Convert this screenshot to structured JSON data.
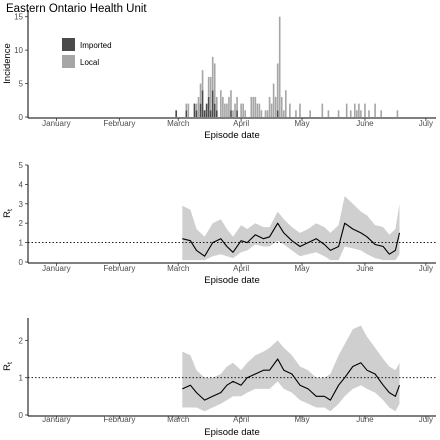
{
  "figure_title": "Eastern Ontario Health Unit",
  "colors": {
    "imported": "#4a4a4a",
    "local": "#a6a6a6",
    "ribbon": "#cfcfcf",
    "line": "#000000",
    "reference": "#000000"
  },
  "chart_data": [
    {
      "type": "bar",
      "stacked": true,
      "ylabel": "Incidence",
      "xlabel": "Episode date",
      "ylim": [
        0,
        16
      ],
      "yticks": [
        0,
        5,
        10,
        15
      ],
      "ytick_labels": [
        "0",
        "5",
        "10",
        "15"
      ],
      "xlim": [
        "2020-01-01",
        "2020-07-20"
      ],
      "xticks": [
        "2020-01-15",
        "2020-02-15",
        "2020-03-15",
        "2020-04-15",
        "2020-05-15",
        "2020-06-15",
        "2020-07-15"
      ],
      "xtick_labels": [
        "January",
        "February",
        "March",
        "April",
        "May",
        "June",
        "July"
      ],
      "legend": {
        "position": "top-left",
        "entries": [
          "Imported",
          "Local"
        ]
      },
      "series": [
        {
          "name": "Imported",
          "x": [
            "2020-03-14",
            "2020-03-19",
            "2020-03-23",
            "2020-03-24",
            "2020-03-26",
            "2020-03-27",
            "2020-03-28",
            "2020-03-29",
            "2020-03-30",
            "2020-03-31",
            "2020-04-01",
            "2020-04-02",
            "2020-04-03",
            "2020-04-10",
            "2020-04-13",
            "2020-05-03"
          ],
          "values": [
            1,
            1,
            2,
            1,
            2,
            4,
            1,
            2,
            3,
            1,
            4,
            2,
            1,
            1,
            1,
            1
          ]
        },
        {
          "name": "Local",
          "x": [
            "2020-03-14",
            "2020-03-19",
            "2020-03-20",
            "2020-03-24",
            "2020-03-25",
            "2020-03-26",
            "2020-03-27",
            "2020-03-30",
            "2020-03-31",
            "2020-04-01",
            "2020-04-02",
            "2020-04-03",
            "2020-04-05",
            "2020-04-06",
            "2020-04-07",
            "2020-04-08",
            "2020-04-09",
            "2020-04-10",
            "2020-04-11",
            "2020-04-12",
            "2020-04-13",
            "2020-04-15",
            "2020-04-16",
            "2020-04-17",
            "2020-04-20",
            "2020-04-21",
            "2020-04-22",
            "2020-04-23",
            "2020-04-24",
            "2020-04-25",
            "2020-04-27",
            "2020-04-28",
            "2020-04-29",
            "2020-04-30",
            "2020-05-01",
            "2020-05-02",
            "2020-05-03",
            "2020-05-04",
            "2020-05-05",
            "2020-05-06",
            "2020-05-07",
            "2020-05-09",
            "2020-05-12",
            "2020-05-14",
            "2020-05-19",
            "2020-05-25",
            "2020-05-28",
            "2020-06-02",
            "2020-06-06",
            "2020-06-08",
            "2020-06-10",
            "2020-06-11",
            "2020-06-12",
            "2020-06-13",
            "2020-06-15",
            "2020-06-17",
            "2020-06-20",
            "2020-06-23",
            "2020-07-01"
          ],
          "values": [
            0,
            1,
            2,
            1,
            3,
            3,
            3,
            3,
            5,
            5,
            6,
            2,
            4,
            3,
            2,
            2,
            3,
            3,
            1,
            2,
            2,
            2,
            2,
            1,
            3,
            3,
            3,
            2,
            2,
            1,
            1,
            1,
            3,
            2,
            5,
            3,
            7,
            15,
            3,
            1,
            4,
            2,
            1,
            2,
            1,
            2,
            1,
            1,
            2,
            1,
            2,
            1,
            2,
            1,
            2,
            1,
            2,
            1,
            1
          ]
        }
      ]
    },
    {
      "type": "line",
      "ylabel": "Rt",
      "xlabel": "Episode date",
      "ylim": [
        0,
        5
      ],
      "yticks": [
        0,
        1,
        2,
        3,
        4,
        5
      ],
      "ytick_labels": [
        "0",
        "1",
        "2",
        "3",
        "4",
        "5"
      ],
      "xlim": [
        "2020-01-01",
        "2020-07-20"
      ],
      "xticks": [
        "2020-01-15",
        "2020-02-15",
        "2020-03-15",
        "2020-04-15",
        "2020-05-15",
        "2020-06-15",
        "2020-07-15"
      ],
      "xtick_labels": [
        "January",
        "February",
        "March",
        "April",
        "May",
        "June",
        "July"
      ],
      "reference_line": {
        "y": 1,
        "style": "dotted"
      },
      "series": [
        {
          "x": [
            "2020-03-17",
            "2020-03-21",
            "2020-03-24",
            "2020-03-28",
            "2020-04-01",
            "2020-04-05",
            "2020-04-08",
            "2020-04-11",
            "2020-04-15",
            "2020-04-18",
            "2020-04-22",
            "2020-04-26",
            "2020-04-29",
            "2020-05-03",
            "2020-05-06",
            "2020-05-10",
            "2020-05-14",
            "2020-05-18",
            "2020-05-22",
            "2020-05-26",
            "2020-05-29",
            "2020-06-02",
            "2020-06-05",
            "2020-06-09",
            "2020-06-13",
            "2020-06-16",
            "2020-06-20",
            "2020-06-24",
            "2020-06-27",
            "2020-06-30",
            "2020-07-02"
          ],
          "values": [
            1.2,
            1.1,
            0.6,
            0.3,
            1.0,
            1.2,
            0.8,
            0.5,
            1.1,
            1.0,
            1.4,
            1.2,
            1.3,
            2.0,
            1.5,
            1.1,
            0.8,
            1.0,
            1.2,
            0.9,
            0.6,
            0.8,
            2.0,
            1.7,
            1.5,
            1.3,
            0.9,
            0.8,
            0.4,
            0.6,
            1.5
          ],
          "lower": [
            0.1,
            0.1,
            0.1,
            0.1,
            0.3,
            0.4,
            0.3,
            0.2,
            0.5,
            0.6,
            0.9,
            0.8,
            0.8,
            1.1,
            0.9,
            0.6,
            0.3,
            0.4,
            0.5,
            0.3,
            0.1,
            0.1,
            0.8,
            0.7,
            0.6,
            0.4,
            0.2,
            0.1,
            0.1,
            0.1,
            0.4
          ],
          "upper": [
            2.9,
            2.7,
            1.7,
            1.3,
            2.0,
            2.2,
            1.7,
            1.3,
            1.9,
            1.7,
            2.0,
            1.8,
            1.8,
            2.6,
            2.2,
            1.8,
            1.5,
            1.7,
            2.0,
            1.8,
            1.5,
            1.9,
            3.4,
            3.0,
            2.6,
            2.4,
            1.9,
            1.8,
            1.4,
            1.7,
            3.0
          ]
        }
      ]
    },
    {
      "type": "line",
      "ylabel": "Rt",
      "xlabel": "Episode date",
      "ylim": [
        0,
        2.6
      ],
      "yticks": [
        0,
        1,
        2
      ],
      "ytick_labels": [
        "0",
        "1",
        "2"
      ],
      "xlim": [
        "2020-01-01",
        "2020-07-20"
      ],
      "xticks": [
        "2020-01-15",
        "2020-02-15",
        "2020-03-15",
        "2020-04-15",
        "2020-05-15",
        "2020-06-15",
        "2020-07-15"
      ],
      "xtick_labels": [
        "January",
        "February",
        "March",
        "April",
        "May",
        "June",
        "July"
      ],
      "reference_line": {
        "y": 1,
        "style": "dotted"
      },
      "series": [
        {
          "x": [
            "2020-03-17",
            "2020-03-21",
            "2020-03-24",
            "2020-03-28",
            "2020-04-01",
            "2020-04-05",
            "2020-04-08",
            "2020-04-11",
            "2020-04-15",
            "2020-04-18",
            "2020-04-22",
            "2020-04-26",
            "2020-04-29",
            "2020-05-03",
            "2020-05-06",
            "2020-05-10",
            "2020-05-14",
            "2020-05-18",
            "2020-05-22",
            "2020-05-26",
            "2020-05-29",
            "2020-06-02",
            "2020-06-05",
            "2020-06-09",
            "2020-06-13",
            "2020-06-16",
            "2020-06-20",
            "2020-06-24",
            "2020-06-27",
            "2020-06-30",
            "2020-07-02"
          ],
          "values": [
            0.7,
            0.8,
            0.6,
            0.4,
            0.5,
            0.6,
            0.8,
            0.9,
            0.8,
            1.0,
            1.1,
            1.2,
            1.2,
            1.5,
            1.2,
            1.1,
            0.8,
            0.7,
            0.5,
            0.5,
            0.4,
            0.8,
            1.0,
            1.3,
            1.4,
            1.2,
            1.1,
            0.8,
            0.6,
            0.5,
            0.8
          ],
          "lower": [
            0.2,
            0.2,
            0.2,
            0.1,
            0.2,
            0.3,
            0.4,
            0.5,
            0.5,
            0.6,
            0.7,
            0.7,
            0.7,
            0.9,
            0.7,
            0.6,
            0.4,
            0.3,
            0.2,
            0.2,
            0.1,
            0.3,
            0.5,
            0.7,
            0.8,
            0.7,
            0.6,
            0.4,
            0.2,
            0.1,
            0.3
          ],
          "upper": [
            1.7,
            1.6,
            1.2,
            1.0,
            1.0,
            1.1,
            1.3,
            1.4,
            1.2,
            1.4,
            1.6,
            1.7,
            1.8,
            2.0,
            1.8,
            1.6,
            1.3,
            1.2,
            1.0,
            1.0,
            1.1,
            1.6,
            1.9,
            2.3,
            2.4,
            2.1,
            1.8,
            1.5,
            1.3,
            1.2,
            1.4
          ]
        }
      ]
    }
  ]
}
